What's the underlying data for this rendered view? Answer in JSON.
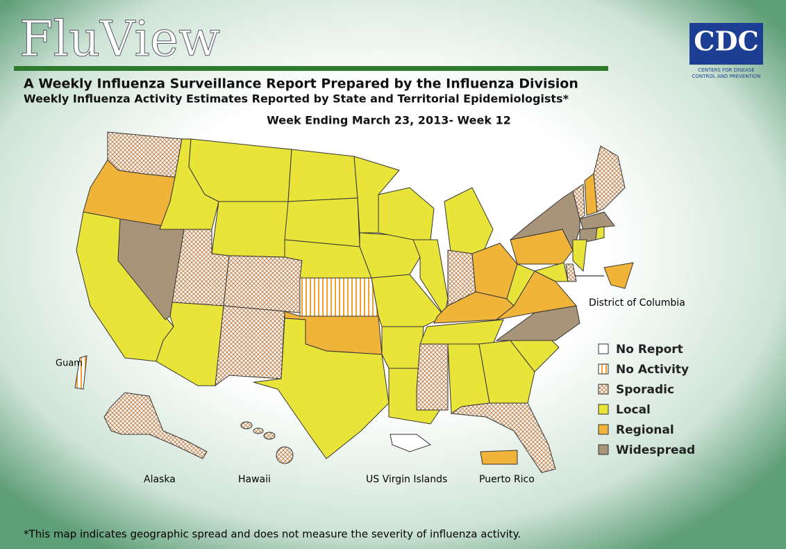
{
  "header": {
    "title": "FluView",
    "subtitle": "A Weekly Influenza Surveillance Report Prepared by the Influenza Division",
    "subtitle2": "Weekly Influenza Activity Estimates Reported by State and Territorial Epidemiologists*",
    "week": "Week Ending March 23, 2013- Week 12"
  },
  "logo": {
    "name": "CDC",
    "line1": "Centers for Disease",
    "line2": "Control and Prevention"
  },
  "map": {
    "legend": [
      {
        "label": "No Report",
        "color": "#ffffff"
      },
      {
        "label": "No Activity",
        "color": "#f0a030",
        "pattern": "stripes"
      },
      {
        "label": "Sporadic",
        "color": "#c89060",
        "pattern": "hatch"
      },
      {
        "label": "Local",
        "color": "#e8e43a"
      },
      {
        "label": "Regional",
        "color": "#f0b43a"
      },
      {
        "label": "Widespread",
        "color": "#a89478"
      }
    ],
    "areas": [
      2,
      4,
      3,
      5,
      3,
      3,
      3,
      2,
      2,
      3,
      2,
      3,
      3,
      3,
      1,
      4,
      3,
      3,
      3,
      3,
      3,
      3,
      3,
      3,
      3,
      2,
      4,
      4,
      3,
      2,
      3,
      3,
      2,
      3,
      5,
      4,
      3,
      4,
      5,
      2,
      4,
      2,
      5,
      5,
      3,
      3,
      2,
      3,
      4,
      2,
      1,
      4,
      0
    ],
    "labels": {
      "dc": "District of Columbia",
      "guam": "Guam",
      "alaska": "Alaska",
      "hawaii": "Hawaii",
      "vi": "US Virgin Islands",
      "pr": "Puerto Rico"
    }
  },
  "footnote": "*This map indicates geographic spread and does not measure the severity of influenza activity."
}
